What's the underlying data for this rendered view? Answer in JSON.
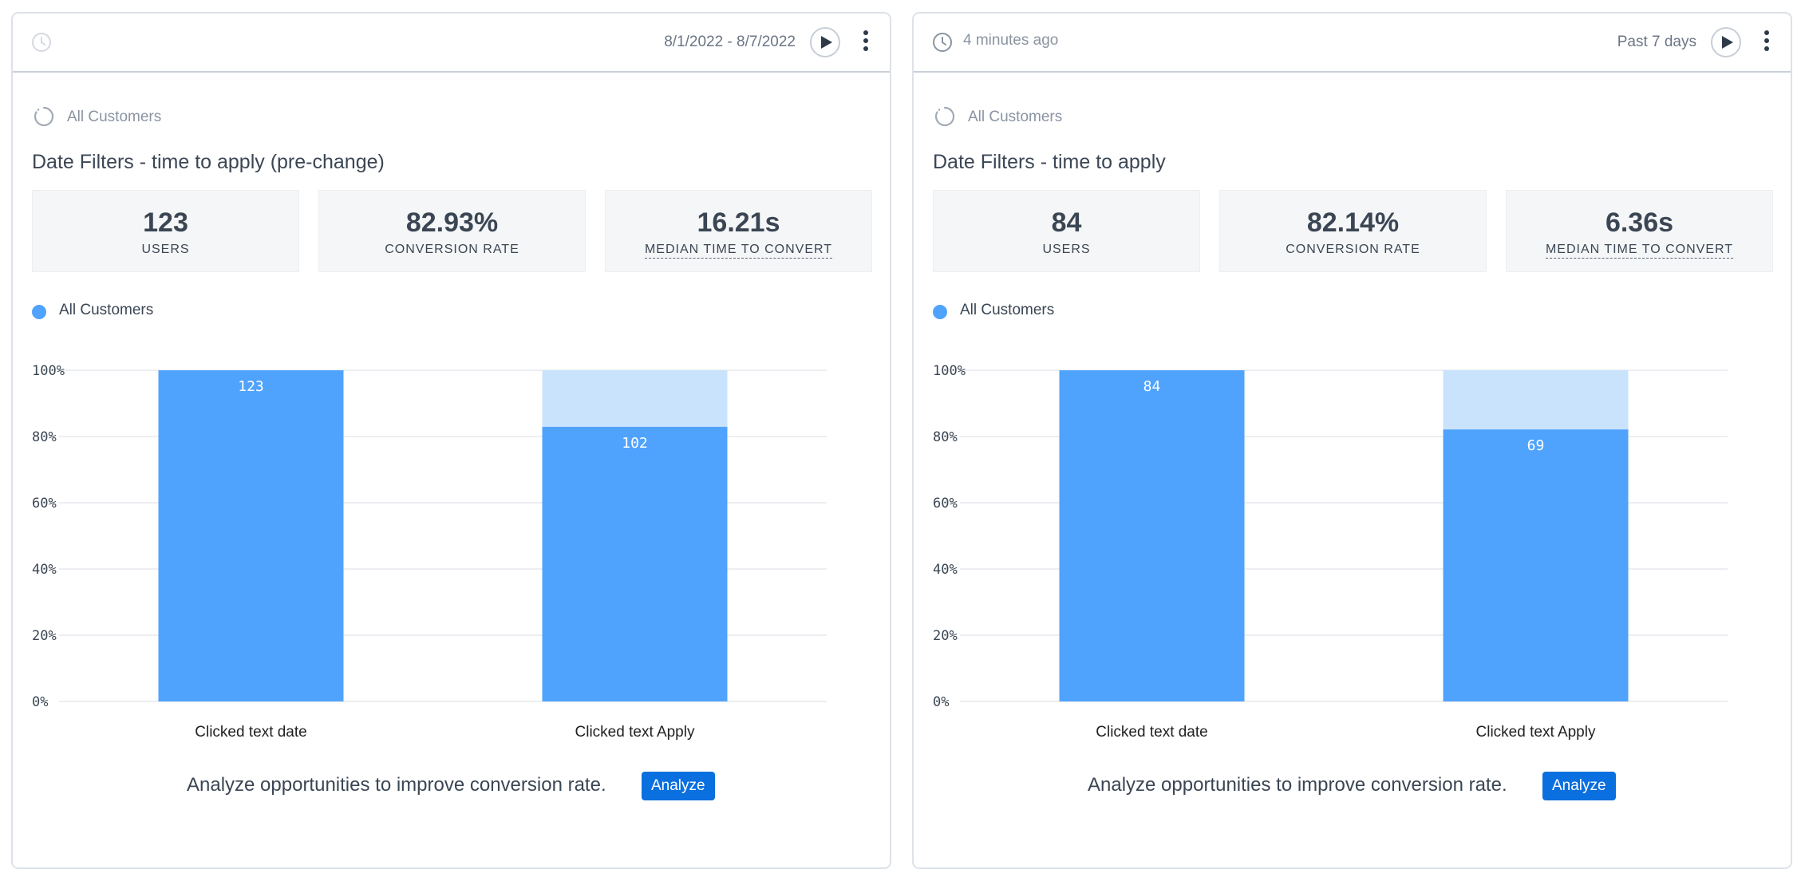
{
  "cards": [
    {
      "refresh_text": "",
      "range_label": "8/1/2022 - 8/7/2022",
      "segment_label": "All Customers",
      "title": "Date Filters - time to apply (pre-change)",
      "stats": {
        "users_value": "123",
        "users_label": "USERS",
        "conversion_value": "82.93%",
        "conversion_label": "CONVERSION RATE",
        "median_value": "16.21s",
        "median_label": "MEDIAN TIME TO CONVERT"
      },
      "legend_label": "All Customers",
      "cta_text": "Analyze opportunities to improve conversion rate.",
      "analyze_label": "Analyze"
    },
    {
      "refresh_text": "4 minutes ago",
      "range_label": "Past 7 days",
      "segment_label": "All Customers",
      "title": "Date Filters - time to apply",
      "stats": {
        "users_value": "84",
        "users_label": "USERS",
        "conversion_value": "82.14%",
        "conversion_label": "CONVERSION RATE",
        "median_value": "6.36s",
        "median_label": "MEDIAN TIME TO CONVERT"
      },
      "legend_label": "All Customers",
      "cta_text": "Analyze opportunities to improve conversion rate.",
      "analyze_label": "Analyze"
    }
  ],
  "colors": {
    "bar": "#50a3fc",
    "bar_remainder": "#cae3fd",
    "grid": "#e6e9ed",
    "analyze_button": "#0a6fdf"
  },
  "chart_data": [
    {
      "type": "bar",
      "categories": [
        "Clicked text date",
        "Clicked text Apply"
      ],
      "series": [
        {
          "name": "All Customers",
          "values": [
            100,
            82.93
          ],
          "labels": [
            "123",
            "102"
          ]
        }
      ],
      "yticks": [
        "0%",
        "20%",
        "40%",
        "60%",
        "80%",
        "100%"
      ],
      "ylim": [
        0,
        100
      ],
      "grid": true,
      "legend": "top-left"
    },
    {
      "type": "bar",
      "categories": [
        "Clicked text date",
        "Clicked text Apply"
      ],
      "series": [
        {
          "name": "All Customers",
          "values": [
            100,
            82.14
          ],
          "labels": [
            "84",
            "69"
          ]
        }
      ],
      "yticks": [
        "0%",
        "20%",
        "40%",
        "60%",
        "80%",
        "100%"
      ],
      "ylim": [
        0,
        100
      ],
      "grid": true,
      "legend": "top-left"
    }
  ]
}
